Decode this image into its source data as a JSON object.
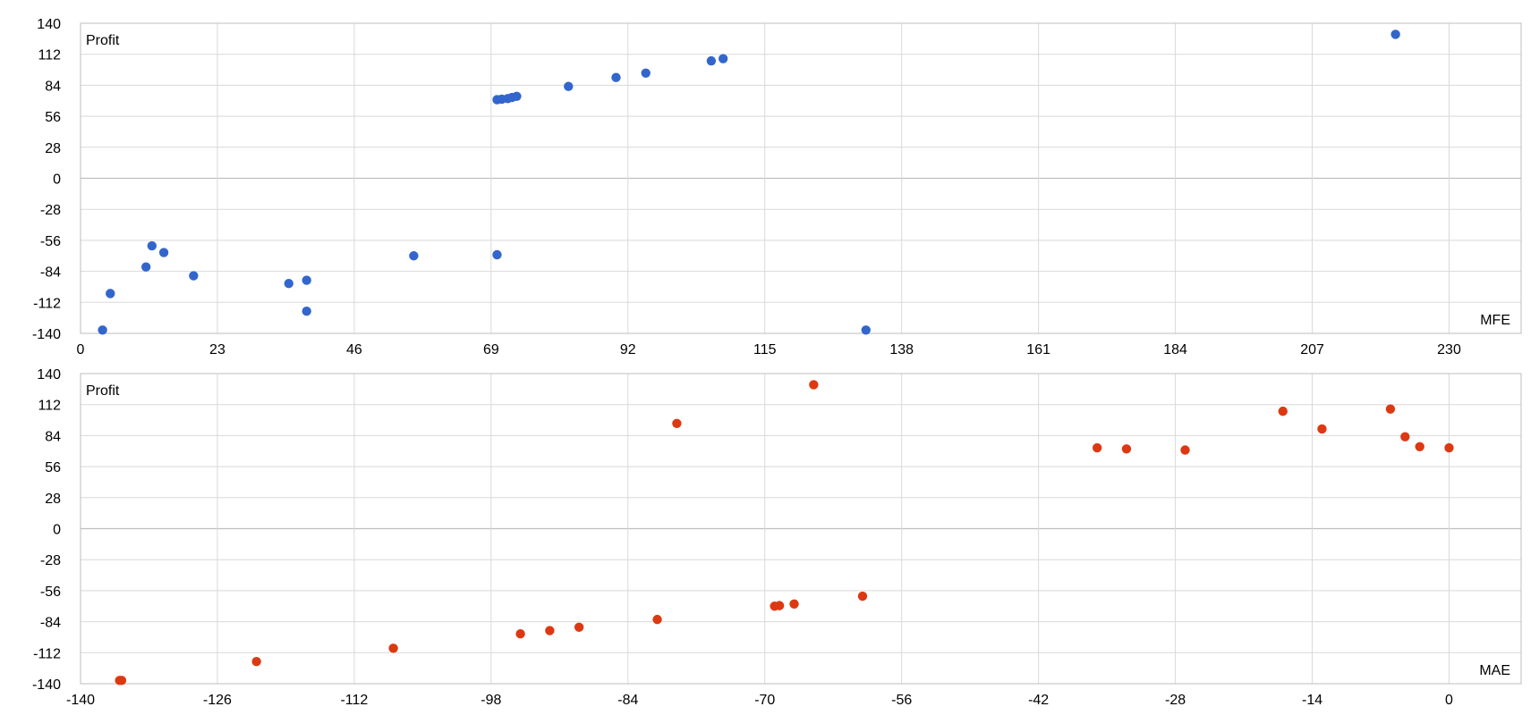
{
  "chart_data": [
    {
      "type": "scatter",
      "xlabel": "MFE",
      "ylabel": "Profit",
      "xlim": [
        0,
        230
      ],
      "ylim": [
        -140,
        140
      ],
      "xticks": [
        0,
        23,
        46,
        69,
        92,
        115,
        138,
        161,
        184,
        207,
        230
      ],
      "yticks": [
        140,
        112,
        84,
        56,
        28,
        0,
        -28,
        -56,
        -84,
        -112,
        -140
      ],
      "grid": true,
      "color": "#3366cc",
      "points": [
        {
          "x": 3.7,
          "y": -137
        },
        {
          "x": 5,
          "y": -104
        },
        {
          "x": 11,
          "y": -80
        },
        {
          "x": 12,
          "y": -61
        },
        {
          "x": 14,
          "y": -67
        },
        {
          "x": 19,
          "y": -88
        },
        {
          "x": 35,
          "y": -95
        },
        {
          "x": 38,
          "y": -92
        },
        {
          "x": 38,
          "y": -120
        },
        {
          "x": 56,
          "y": -70
        },
        {
          "x": 70,
          "y": -69
        },
        {
          "x": 70,
          "y": 71
        },
        {
          "x": 70.8,
          "y": 71.5
        },
        {
          "x": 71.8,
          "y": 72
        },
        {
          "x": 72.5,
          "y": 73
        },
        {
          "x": 73.3,
          "y": 74
        },
        {
          "x": 82,
          "y": 83
        },
        {
          "x": 90,
          "y": 91
        },
        {
          "x": 95,
          "y": 95
        },
        {
          "x": 106,
          "y": 106
        },
        {
          "x": 108,
          "y": 108
        },
        {
          "x": 132,
          "y": -137
        },
        {
          "x": 221,
          "y": 130
        }
      ]
    },
    {
      "type": "scatter",
      "xlabel": "MAE",
      "ylabel": "Profit",
      "xlim": [
        -140,
        0
      ],
      "ylim": [
        -140,
        140
      ],
      "xticks": [
        -140,
        -126,
        -112,
        -98,
        -84,
        -70,
        -56,
        -42,
        -28,
        -14,
        0
      ],
      "yticks": [
        140,
        112,
        84,
        56,
        28,
        0,
        -28,
        -56,
        -84,
        -112,
        -140
      ],
      "grid": true,
      "color": "#dc3912",
      "points": [
        {
          "x": -136,
          "y": -137
        },
        {
          "x": -135.8,
          "y": -137
        },
        {
          "x": -122,
          "y": -120
        },
        {
          "x": -108,
          "y": -108
        },
        {
          "x": -95,
          "y": -95
        },
        {
          "x": -92,
          "y": -92
        },
        {
          "x": -89,
          "y": -89
        },
        {
          "x": -81,
          "y": -82
        },
        {
          "x": -79,
          "y": 95
        },
        {
          "x": -69,
          "y": -70
        },
        {
          "x": -68.5,
          "y": -69.5
        },
        {
          "x": -67,
          "y": -68
        },
        {
          "x": -65,
          "y": 130
        },
        {
          "x": -60,
          "y": -61
        },
        {
          "x": -36,
          "y": 73
        },
        {
          "x": -33,
          "y": 72
        },
        {
          "x": -27,
          "y": 71
        },
        {
          "x": -17,
          "y": 106
        },
        {
          "x": -13,
          "y": 90
        },
        {
          "x": -6,
          "y": 108
        },
        {
          "x": -4.5,
          "y": 83
        },
        {
          "x": -3,
          "y": 74
        },
        {
          "x": 0,
          "y": 73
        }
      ]
    }
  ]
}
